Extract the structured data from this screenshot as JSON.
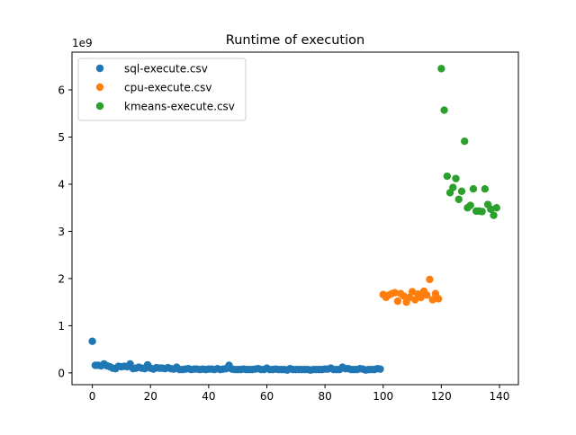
{
  "chart_data": {
    "type": "scatter",
    "title": "Runtime of execution",
    "xlabel": "",
    "ylabel": "",
    "y_offset_text": "1e9",
    "xlim": [
      -7,
      146.5
    ],
    "ylim": [
      -0.25,
      6.8
    ],
    "xticks": [
      0,
      20,
      40,
      60,
      80,
      100,
      120,
      140
    ],
    "yticks": [
      0,
      1,
      2,
      3,
      4,
      5,
      6
    ],
    "grid": false,
    "legend_position": "top-left",
    "series": [
      {
        "name": "sql-execute.csv",
        "color": "#1f77b4",
        "x": [
          0,
          1,
          2,
          3,
          4,
          5,
          6,
          7,
          8,
          9,
          10,
          11,
          12,
          13,
          14,
          15,
          16,
          17,
          18,
          19,
          20,
          21,
          22,
          23,
          24,
          25,
          26,
          27,
          28,
          29,
          30,
          31,
          32,
          33,
          34,
          35,
          36,
          37,
          38,
          39,
          40,
          41,
          42,
          43,
          44,
          45,
          46,
          47,
          48,
          49,
          50,
          51,
          52,
          53,
          54,
          55,
          56,
          57,
          58,
          59,
          60,
          61,
          62,
          63,
          64,
          65,
          66,
          67,
          68,
          69,
          70,
          71,
          72,
          73,
          74,
          75,
          76,
          77,
          78,
          79,
          80,
          81,
          82,
          83,
          84,
          85,
          86,
          87,
          88,
          89,
          90,
          91,
          92,
          93,
          94,
          95,
          96,
          97,
          98,
          99
        ],
        "y": [
          0.67,
          0.16,
          0.16,
          0.15,
          0.19,
          0.15,
          0.13,
          0.1,
          0.09,
          0.14,
          0.13,
          0.14,
          0.13,
          0.19,
          0.09,
          0.1,
          0.12,
          0.1,
          0.09,
          0.17,
          0.1,
          0.08,
          0.11,
          0.1,
          0.1,
          0.09,
          0.11,
          0.09,
          0.08,
          0.12,
          0.07,
          0.07,
          0.08,
          0.09,
          0.07,
          0.08,
          0.08,
          0.07,
          0.08,
          0.07,
          0.08,
          0.08,
          0.07,
          0.09,
          0.07,
          0.08,
          0.09,
          0.16,
          0.08,
          0.07,
          0.07,
          0.07,
          0.08,
          0.07,
          0.07,
          0.07,
          0.08,
          0.09,
          0.07,
          0.07,
          0.1,
          0.07,
          0.07,
          0.08,
          0.07,
          0.07,
          0.07,
          0.06,
          0.09,
          0.07,
          0.07,
          0.07,
          0.07,
          0.07,
          0.07,
          0.06,
          0.07,
          0.07,
          0.07,
          0.07,
          0.08,
          0.08,
          0.1,
          0.07,
          0.07,
          0.07,
          0.12,
          0.09,
          0.09,
          0.07,
          0.07,
          0.07,
          0.09,
          0.08,
          0.06,
          0.07,
          0.07,
          0.07,
          0.09,
          0.08
        ]
      },
      {
        "name": "cpu-execute.csv",
        "color": "#ff7f0e",
        "x": [
          100,
          101,
          102,
          103,
          104,
          105,
          106,
          107,
          108,
          109,
          110,
          111,
          112,
          113,
          114,
          115,
          116,
          117,
          118,
          119
        ],
        "y": [
          1.66,
          1.6,
          1.65,
          1.68,
          1.7,
          1.52,
          1.68,
          1.63,
          1.5,
          1.6,
          1.72,
          1.55,
          1.67,
          1.6,
          1.73,
          1.65,
          1.98,
          1.55,
          1.68,
          1.57
        ]
      },
      {
        "name": "kmeans-execute.csv",
        "color": "#2ca02c",
        "x": [
          120,
          121,
          122,
          123,
          124,
          125,
          126,
          127,
          128,
          129,
          130,
          131,
          132,
          133,
          134,
          135,
          136,
          137,
          138,
          139
        ],
        "y": [
          6.45,
          5.57,
          4.17,
          3.82,
          3.93,
          4.12,
          3.68,
          3.85,
          4.91,
          3.5,
          3.55,
          3.9,
          3.43,
          3.43,
          3.42,
          3.9,
          3.57,
          3.47,
          3.34,
          3.5
        ]
      }
    ]
  }
}
